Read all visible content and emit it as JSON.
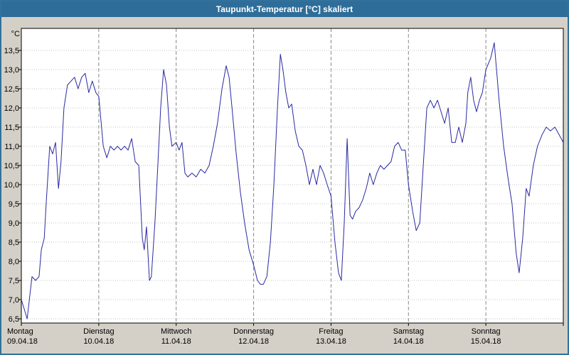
{
  "window": {
    "title": "Taupunkt-Temperatur [°C] skaliert"
  },
  "colors": {
    "titlebar_bg": "#2e6d99",
    "titlebar_text": "#ffffff",
    "frame_border": "#31719c",
    "panel_bg": "#d4d0c8",
    "plot_bg": "#ffffff",
    "axis": "#000000",
    "grid_minor": "#c4c4c4",
    "grid_major": "#8a8a8a",
    "line": "#2929a3"
  },
  "chart_data": {
    "type": "line",
    "title": "Taupunkt-Temperatur [°C] skaliert",
    "xlabel": "",
    "ylabel": "°C",
    "ylim": [
      6.5,
      13.5
    ],
    "ytick_step": 0.5,
    "ytick_labels": [
      "13,5",
      "13,0",
      "12,5",
      "12,0",
      "11,5",
      "11,0",
      "10,5",
      "10,0",
      "9,5",
      "9,0",
      "8,5",
      "8,0",
      "7,5",
      "7,0",
      "6,5"
    ],
    "x_range_hours": [
      0,
      168
    ],
    "x_days": [
      {
        "name": "Montag",
        "date": "09.04.18"
      },
      {
        "name": "Dienstag",
        "date": "10.04.18"
      },
      {
        "name": "Mittwoch",
        "date": "11.04.18"
      },
      {
        "name": "Donnerstag",
        "date": "12.04.18"
      },
      {
        "name": "Freitag",
        "date": "13.04.18"
      },
      {
        "name": "Samstag",
        "date": "14.04.18"
      },
      {
        "name": "Sonntag",
        "date": "15.04.18"
      }
    ],
    "grid": true,
    "legend": "none",
    "series": [
      {
        "name": "Taupunkt-Temperatur [°C] skaliert",
        "points": [
          [
            0,
            7.0
          ],
          [
            1.8,
            6.5
          ],
          [
            3.3,
            7.6
          ],
          [
            4.4,
            7.5
          ],
          [
            5.5,
            7.6
          ],
          [
            6.2,
            8.3
          ],
          [
            7.1,
            8.6
          ],
          [
            7.7,
            9.5
          ],
          [
            8.8,
            11.0
          ],
          [
            9.7,
            10.8
          ],
          [
            10.6,
            11.1
          ],
          [
            11.5,
            9.9
          ],
          [
            12.3,
            10.6
          ],
          [
            13.2,
            12.0
          ],
          [
            14.3,
            12.6
          ],
          [
            15.4,
            12.7
          ],
          [
            16.5,
            12.8
          ],
          [
            17.6,
            12.5
          ],
          [
            18.7,
            12.8
          ],
          [
            19.8,
            12.9
          ],
          [
            20.9,
            12.4
          ],
          [
            22,
            12.7
          ],
          [
            23.1,
            12.4
          ],
          [
            24,
            12.3
          ],
          [
            25.4,
            11.0
          ],
          [
            26.5,
            10.7
          ],
          [
            27.6,
            11.0
          ],
          [
            28.7,
            10.9
          ],
          [
            29.8,
            11.0
          ],
          [
            30.9,
            10.9
          ],
          [
            32,
            11.0
          ],
          [
            33.1,
            10.9
          ],
          [
            34.2,
            11.2
          ],
          [
            35.3,
            10.6
          ],
          [
            36.4,
            10.5
          ],
          [
            37.5,
            8.6
          ],
          [
            38.1,
            8.3
          ],
          [
            38.8,
            8.9
          ],
          [
            39.7,
            7.5
          ],
          [
            40.3,
            7.6
          ],
          [
            41.4,
            9.0
          ],
          [
            42.3,
            10.5
          ],
          [
            43.2,
            12.0
          ],
          [
            44.1,
            13.0
          ],
          [
            45,
            12.6
          ],
          [
            45.9,
            11.5
          ],
          [
            46.7,
            11.0
          ],
          [
            48,
            11.1
          ],
          [
            48.9,
            10.9
          ],
          [
            49.8,
            11.1
          ],
          [
            50.7,
            10.3
          ],
          [
            51.6,
            10.2
          ],
          [
            52.9,
            10.3
          ],
          [
            54.2,
            10.2
          ],
          [
            55.6,
            10.4
          ],
          [
            56.9,
            10.3
          ],
          [
            58.2,
            10.5
          ],
          [
            59.5,
            11.0
          ],
          [
            60.8,
            11.6
          ],
          [
            62.2,
            12.5
          ],
          [
            63.5,
            13.1
          ],
          [
            64.4,
            12.8
          ],
          [
            65.3,
            12.0
          ],
          [
            66.6,
            10.8
          ],
          [
            67.9,
            9.8
          ],
          [
            69.2,
            9.0
          ],
          [
            70.6,
            8.3
          ],
          [
            72,
            7.9
          ],
          [
            73.2,
            7.5
          ],
          [
            74.1,
            7.4
          ],
          [
            75,
            7.4
          ],
          [
            76.1,
            7.6
          ],
          [
            77.2,
            8.5
          ],
          [
            78.3,
            10.0
          ],
          [
            79.4,
            12.0
          ],
          [
            80.3,
            13.4
          ],
          [
            81.1,
            13.0
          ],
          [
            82,
            12.4
          ],
          [
            82.9,
            12.0
          ],
          [
            83.8,
            12.1
          ],
          [
            84.9,
            11.4
          ],
          [
            86,
            11.0
          ],
          [
            87.1,
            10.9
          ],
          [
            88.2,
            10.5
          ],
          [
            89.3,
            10.0
          ],
          [
            90.4,
            10.4
          ],
          [
            91.5,
            10.0
          ],
          [
            92.6,
            10.5
          ],
          [
            93.7,
            10.3
          ],
          [
            94.8,
            10.0
          ],
          [
            96,
            9.7
          ],
          [
            97.2,
            8.5
          ],
          [
            98.3,
            7.7
          ],
          [
            99.2,
            7.5
          ],
          [
            100.1,
            9.0
          ],
          [
            101,
            11.2
          ],
          [
            101.9,
            9.2
          ],
          [
            102.7,
            9.1
          ],
          [
            103.6,
            9.3
          ],
          [
            104.7,
            9.4
          ],
          [
            105.8,
            9.6
          ],
          [
            106.9,
            9.9
          ],
          [
            108,
            10.3
          ],
          [
            109.1,
            10.0
          ],
          [
            110.2,
            10.3
          ],
          [
            111.3,
            10.5
          ],
          [
            112.4,
            10.4
          ],
          [
            113.5,
            10.5
          ],
          [
            114.6,
            10.6
          ],
          [
            115.7,
            11.0
          ],
          [
            116.8,
            11.1
          ],
          [
            117.9,
            10.9
          ],
          [
            119,
            10.9
          ],
          [
            120,
            10.0
          ],
          [
            121.3,
            9.3
          ],
          [
            122.4,
            8.8
          ],
          [
            123.5,
            9.0
          ],
          [
            124.6,
            10.5
          ],
          [
            125.7,
            12.0
          ],
          [
            126.8,
            12.2
          ],
          [
            127.9,
            12.0
          ],
          [
            129,
            12.2
          ],
          [
            130.1,
            11.9
          ],
          [
            131.2,
            11.6
          ],
          [
            132.3,
            12.0
          ],
          [
            133.4,
            11.1
          ],
          [
            134.5,
            11.1
          ],
          [
            135.6,
            11.5
          ],
          [
            136.7,
            11.1
          ],
          [
            137.8,
            11.6
          ],
          [
            138.4,
            12.4
          ],
          [
            139.3,
            12.8
          ],
          [
            140.2,
            12.2
          ],
          [
            141.1,
            11.9
          ],
          [
            142,
            12.2
          ],
          [
            142.9,
            12.4
          ],
          [
            144,
            13.0
          ],
          [
            145.5,
            13.3
          ],
          [
            146.6,
            13.7
          ],
          [
            147.3,
            13.0
          ],
          [
            148.1,
            12.2
          ],
          [
            149.5,
            11.0
          ],
          [
            150.8,
            10.2
          ],
          [
            152.1,
            9.5
          ],
          [
            153.4,
            8.2
          ],
          [
            154.3,
            7.7
          ],
          [
            155.4,
            8.6
          ],
          [
            156.5,
            9.9
          ],
          [
            157.4,
            9.7
          ],
          [
            158.7,
            10.5
          ],
          [
            160,
            11.0
          ],
          [
            161.4,
            11.3
          ],
          [
            162.7,
            11.5
          ],
          [
            164,
            11.4
          ],
          [
            165.4,
            11.5
          ],
          [
            166.7,
            11.3
          ],
          [
            168,
            11.1
          ]
        ]
      }
    ]
  }
}
